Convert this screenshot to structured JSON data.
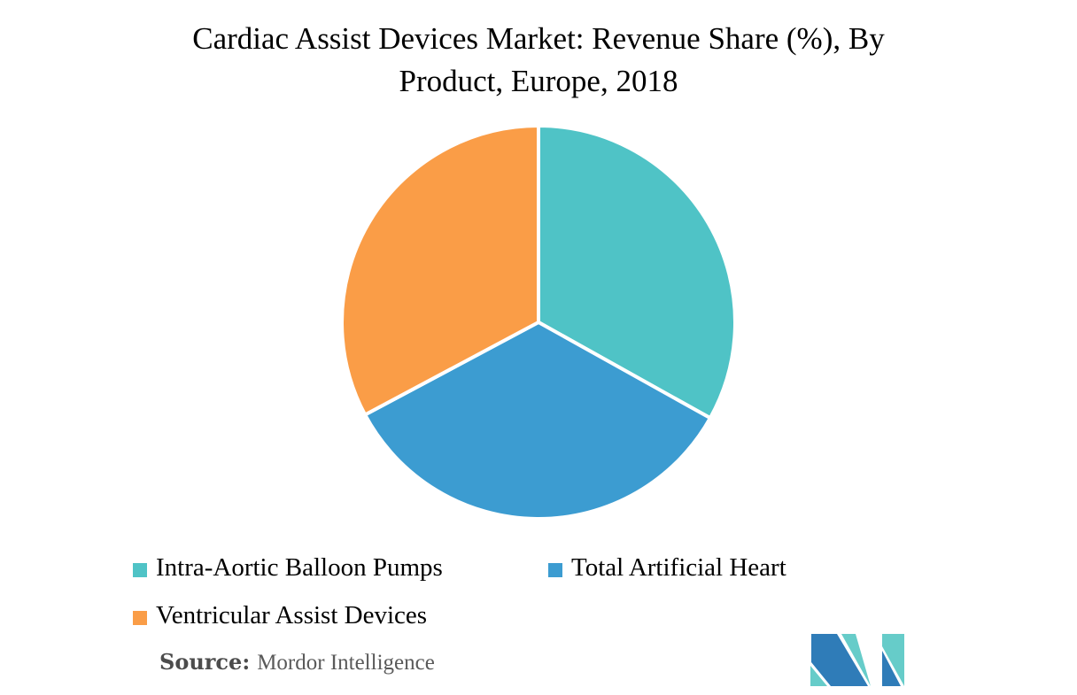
{
  "title": {
    "text": "Cardiac Assist Devices Market: Revenue Share (%), By Product, Europe, 2018",
    "line1": "Cardiac Assist Devices Market: Revenue Share (%), By",
    "line2": "Product, Europe, 2018"
  },
  "chart_data": {
    "type": "pie",
    "title": "Cardiac Assist Devices Market: Revenue Share (%), By Product, Europe, 2018",
    "categories": [
      "Intra-Aortic Balloon Pumps",
      "Total Artificial Heart",
      "Ventricular Assist Devices"
    ],
    "values": [
      33.1,
      34.1,
      32.8
    ],
    "values_estimated_from_angles": true,
    "colors": [
      "#4FC3C6",
      "#3C9CD1",
      "#FA9D47"
    ],
    "start_angle_deg": 0,
    "direction": "clockwise",
    "slice_gap_color": "#ffffff",
    "legend_position": "bottom-left",
    "data_labels_shown": false
  },
  "legend": {
    "items": [
      {
        "label": "Intra-Aortic Balloon Pumps",
        "color": "#4FC3C6"
      },
      {
        "label": "Total Artificial Heart",
        "color": "#3C9CD1"
      },
      {
        "label": "Ventricular Assist Devices",
        "color": "#FA9D47"
      }
    ]
  },
  "source": {
    "label": "Source:",
    "text": "Mordor Intelligence"
  },
  "logo": {
    "name": "mordor-intelligence-logo",
    "colors": {
      "blue": "#2F7CB8",
      "teal": "#66CCC9"
    }
  }
}
